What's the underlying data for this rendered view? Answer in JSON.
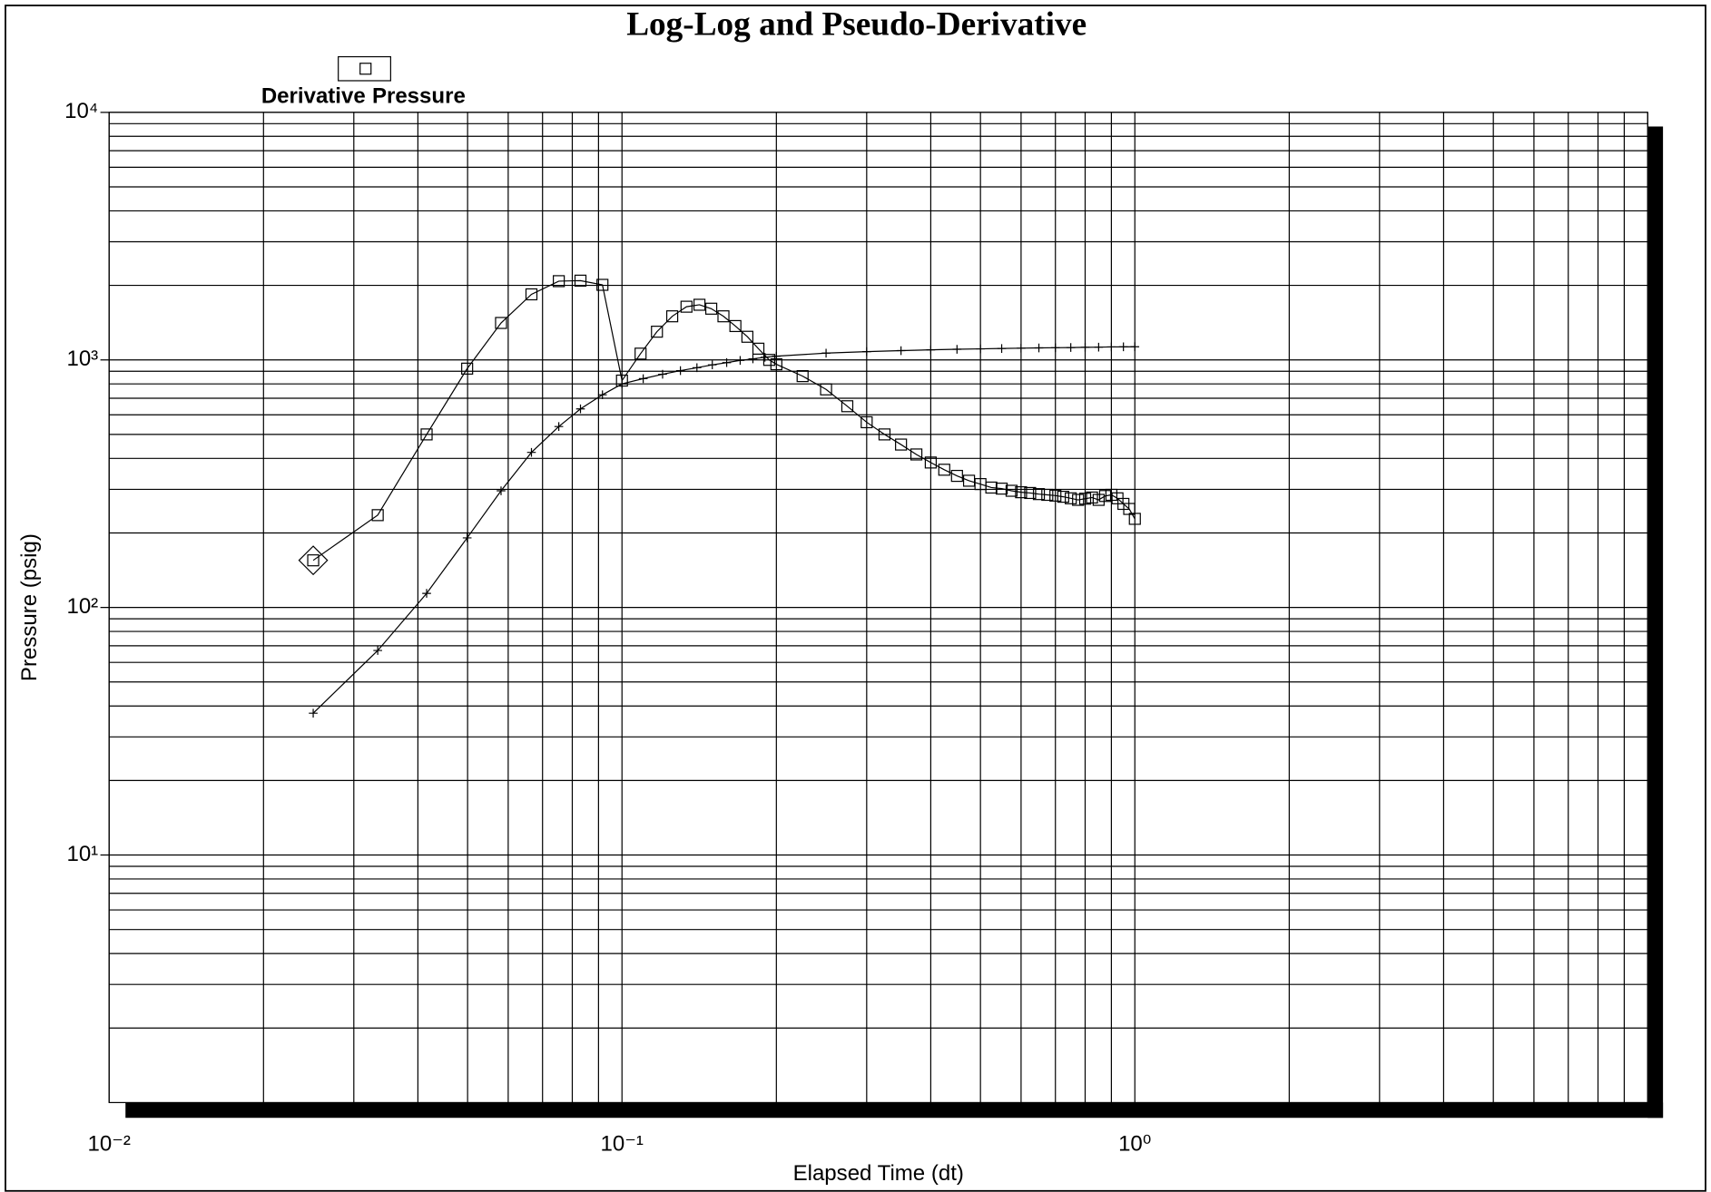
{
  "chart_data": {
    "type": "scatter",
    "title": "Log-Log and Pseudo-Derivative",
    "x_label": "Elapsed Time (dt)",
    "y_label": "Pressure (psig)",
    "x_log": true,
    "y_log": true,
    "grid": true,
    "minor_grid": true,
    "xlim": [
      0.01,
      10
    ],
    "ylim": [
      1,
      10000
    ],
    "xticks": [
      {
        "value": 0.01,
        "label": "10⁻²"
      },
      {
        "value": 0.1,
        "label": "10⁻¹"
      },
      {
        "value": 1,
        "label": "10⁰"
      }
    ],
    "yticks": [
      {
        "value": 10,
        "label": "10¹"
      },
      {
        "value": 100,
        "label": "10²"
      },
      {
        "value": 1000,
        "label": "10³"
      },
      {
        "value": 10000,
        "label": "10⁴"
      }
    ],
    "legend": "top-left",
    "series": [
      {
        "name": "Derivative",
        "marker": "square",
        "color": "#000000",
        "x": [
          0.025,
          0.0334,
          0.0416,
          0.0499,
          0.0581,
          0.0666,
          0.0753,
          0.083,
          0.0916,
          0.1,
          0.1087,
          0.117,
          0.1253,
          0.1336,
          0.1416,
          0.1493,
          0.1577,
          0.1664,
          0.1756,
          0.1845,
          0.1937,
          0.2,
          0.225,
          0.25,
          0.275,
          0.3,
          0.325,
          0.35,
          0.375,
          0.4,
          0.425,
          0.45,
          0.475,
          0.5,
          0.525,
          0.55,
          0.575,
          0.6,
          0.625,
          0.65,
          0.675,
          0.7,
          0.725,
          0.75,
          0.775,
          0.8,
          0.825,
          0.85,
          0.875,
          0.9,
          0.925,
          0.95,
          0.975,
          1.0
        ],
        "values": [
          155,
          236,
          500,
          922,
          1410,
          1840,
          2080,
          2090,
          2010,
          825,
          1060,
          1300,
          1500,
          1640,
          1670,
          1610,
          1500,
          1370,
          1240,
          1110,
          1000,
          960,
          860,
          760,
          650,
          560,
          500,
          455,
          415,
          385,
          360,
          340,
          325,
          315,
          305,
          302,
          296,
          292,
          290,
          287,
          285,
          283,
          280,
          276,
          272,
          275,
          278,
          272,
          282,
          285,
          276,
          262,
          250,
          228
        ]
      },
      {
        "name": "Pressure",
        "marker": "plus",
        "color": "#000000",
        "x": [
          0.025,
          0.0334,
          0.0416,
          0.0499,
          0.0581,
          0.0666,
          0.0753,
          0.083,
          0.0916,
          0.1,
          0.11,
          0.12,
          0.13,
          0.14,
          0.15,
          0.16,
          0.17,
          0.18,
          0.19,
          0.2,
          0.25,
          0.3,
          0.35,
          0.4,
          0.45,
          0.5,
          0.55,
          0.6,
          0.65,
          0.7,
          0.75,
          0.8,
          0.85,
          0.9,
          0.95,
          1.0
        ],
        "values": [
          37.4,
          67,
          114,
          191,
          296,
          423,
          538,
          634,
          723,
          800,
          840,
          875,
          905,
          930,
          955,
          975,
          995,
          1010,
          1025,
          1035,
          1065,
          1080,
          1090,
          1098,
          1104,
          1108,
          1112,
          1115,
          1118,
          1120,
          1122,
          1124,
          1126,
          1128,
          1129,
          1130
        ]
      }
    ]
  }
}
